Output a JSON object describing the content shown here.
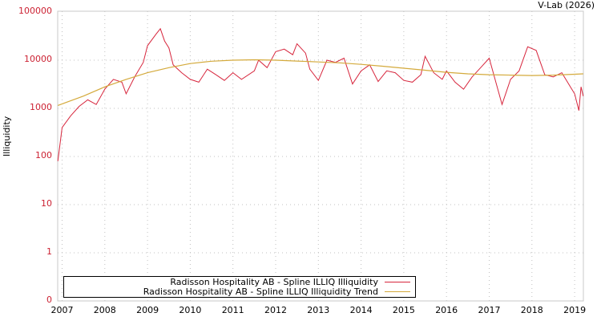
{
  "header": {
    "credit": "V-Lab (2026)"
  },
  "chart_data": {
    "type": "line",
    "title": "",
    "xlabel": "",
    "ylabel": "Illiquidity",
    "yscale": "log",
    "y_ticks": [
      "100000",
      "10000",
      "1000",
      "100",
      "10",
      "1",
      "0"
    ],
    "x_ticks": [
      "2007",
      "2008",
      "2009",
      "2010",
      "2011",
      "2012",
      "2013",
      "2014",
      "2015",
      "2016",
      "2017",
      "2018",
      "2019"
    ],
    "xlim": [
      2006.9,
      2019.2
    ],
    "ylim": [
      0.1,
      100000
    ],
    "grid": true,
    "legend_position": "bottom-left",
    "series": [
      {
        "name": "Radisson Hospitality AB - Spline ILLIQ Illiquidity",
        "color": "#d7263d",
        "points": [
          [
            2006.9,
            80
          ],
          [
            2007.0,
            400
          ],
          [
            2007.2,
            700
          ],
          [
            2007.4,
            1100
          ],
          [
            2007.6,
            1500
          ],
          [
            2007.8,
            1200
          ],
          [
            2008.0,
            2500
          ],
          [
            2008.2,
            4000
          ],
          [
            2008.4,
            3500
          ],
          [
            2008.5,
            2000
          ],
          [
            2008.7,
            4500
          ],
          [
            2008.9,
            9000
          ],
          [
            2009.0,
            20000
          ],
          [
            2009.2,
            35000
          ],
          [
            2009.3,
            45000
          ],
          [
            2009.4,
            25000
          ],
          [
            2009.5,
            18000
          ],
          [
            2009.6,
            8000
          ],
          [
            2009.8,
            5500
          ],
          [
            2010.0,
            4000
          ],
          [
            2010.2,
            3500
          ],
          [
            2010.4,
            6500
          ],
          [
            2010.6,
            5000
          ],
          [
            2010.8,
            3800
          ],
          [
            2011.0,
            5500
          ],
          [
            2011.2,
            4000
          ],
          [
            2011.5,
            6000
          ],
          [
            2011.6,
            10000
          ],
          [
            2011.8,
            7000
          ],
          [
            2012.0,
            15000
          ],
          [
            2012.2,
            17000
          ],
          [
            2012.4,
            13000
          ],
          [
            2012.5,
            22000
          ],
          [
            2012.7,
            14000
          ],
          [
            2012.8,
            6500
          ],
          [
            2013.0,
            3800
          ],
          [
            2013.2,
            10000
          ],
          [
            2013.4,
            9000
          ],
          [
            2013.6,
            11000
          ],
          [
            2013.8,
            3200
          ],
          [
            2014.0,
            6000
          ],
          [
            2014.2,
            8000
          ],
          [
            2014.4,
            3600
          ],
          [
            2014.6,
            6000
          ],
          [
            2014.8,
            5500
          ],
          [
            2015.0,
            3800
          ],
          [
            2015.2,
            3500
          ],
          [
            2015.4,
            5000
          ],
          [
            2015.5,
            12000
          ],
          [
            2015.7,
            5500
          ],
          [
            2015.9,
            4000
          ],
          [
            2016.0,
            6000
          ],
          [
            2016.2,
            3500
          ],
          [
            2016.4,
            2500
          ],
          [
            2016.6,
            4500
          ],
          [
            2016.8,
            7000
          ],
          [
            2017.0,
            11000
          ],
          [
            2017.2,
            2500
          ],
          [
            2017.3,
            1200
          ],
          [
            2017.5,
            4000
          ],
          [
            2017.7,
            6000
          ],
          [
            2017.9,
            19000
          ],
          [
            2018.1,
            16000
          ],
          [
            2018.3,
            5000
          ],
          [
            2018.5,
            4500
          ],
          [
            2018.7,
            5500
          ],
          [
            2018.9,
            2800
          ],
          [
            2019.0,
            2000
          ],
          [
            2019.1,
            900
          ],
          [
            2019.15,
            2800
          ],
          [
            2019.2,
            1800
          ]
        ]
      },
      {
        "name": "Radisson Hospitality AB - Spline ILLIQ Illiquidity Trend",
        "color": "#d4aa3c",
        "points": [
          [
            2006.9,
            1150
          ],
          [
            2007.5,
            1800
          ],
          [
            2008.0,
            2800
          ],
          [
            2008.5,
            4000
          ],
          [
            2009.0,
            5500
          ],
          [
            2009.5,
            7000
          ],
          [
            2010.0,
            8500
          ],
          [
            2010.5,
            9500
          ],
          [
            2011.0,
            10000
          ],
          [
            2011.5,
            10200
          ],
          [
            2012.0,
            10000
          ],
          [
            2012.5,
            9600
          ],
          [
            2013.0,
            9200
          ],
          [
            2013.5,
            8800
          ],
          [
            2014.0,
            8200
          ],
          [
            2014.5,
            7500
          ],
          [
            2015.0,
            6800
          ],
          [
            2015.5,
            6200
          ],
          [
            2016.0,
            5600
          ],
          [
            2016.5,
            5200
          ],
          [
            2017.0,
            5000
          ],
          [
            2017.5,
            4900
          ],
          [
            2018.0,
            4800
          ],
          [
            2018.5,
            4900
          ],
          [
            2019.0,
            5100
          ],
          [
            2019.2,
            5200
          ]
        ]
      }
    ]
  },
  "legend": {
    "items": [
      {
        "label": "Radisson Hospitality AB - Spline ILLIQ Illiquidity",
        "color": "#d7263d"
      },
      {
        "label": "Radisson Hospitality AB - Spline ILLIQ Illiquidity Trend",
        "color": "#d4aa3c"
      }
    ]
  }
}
